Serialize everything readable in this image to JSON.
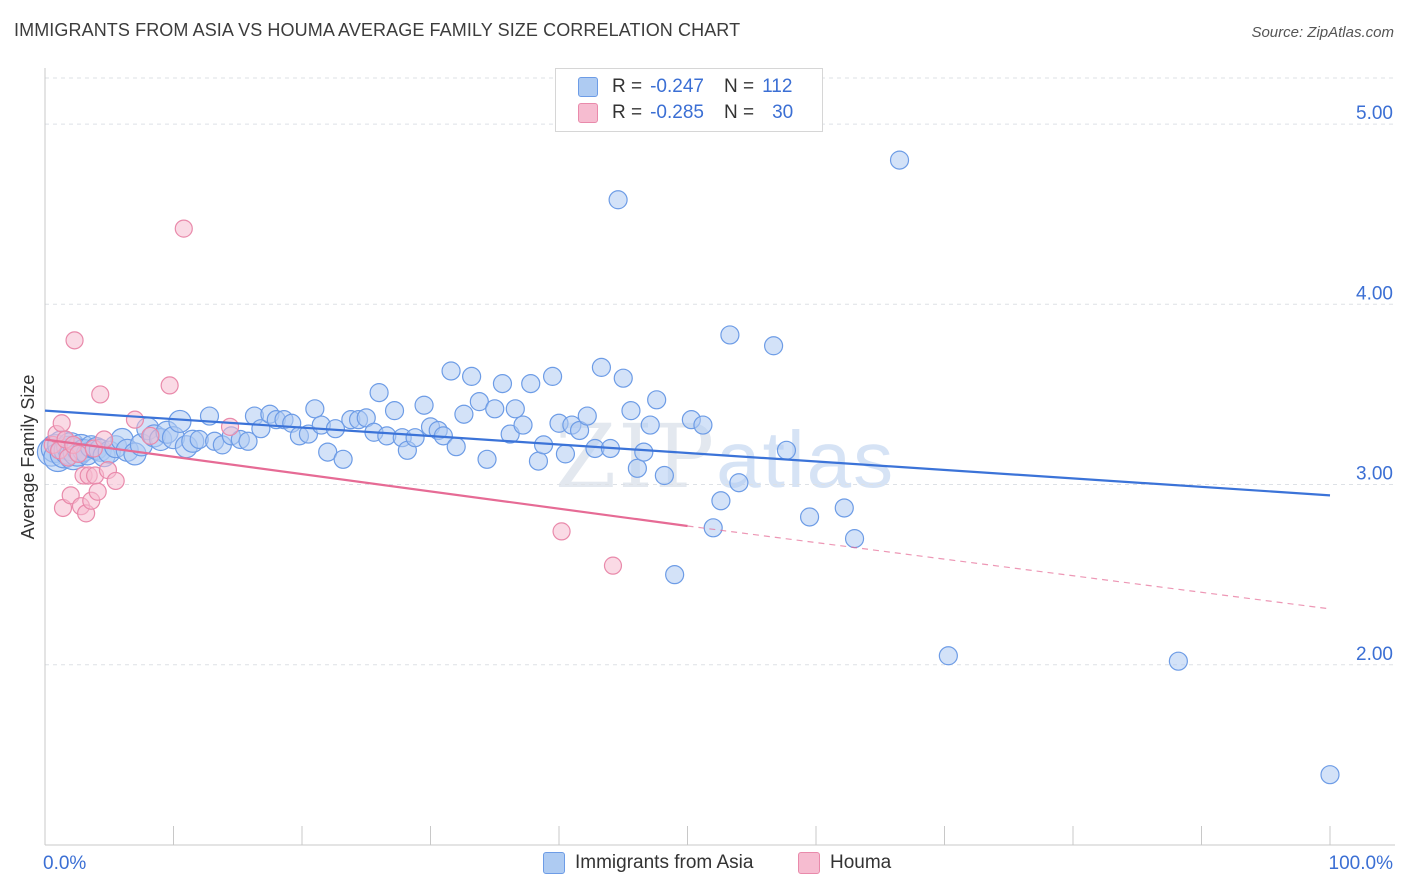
{
  "title": "IMMIGRANTS FROM ASIA VS HOUMA AVERAGE FAMILY SIZE CORRELATION CHART",
  "source": "Source: ZipAtlas.com",
  "watermark": {
    "zip": "ZIP",
    "atlas": "atlas"
  },
  "legend_top": [
    {
      "r_label": "R =",
      "r_value": "-0.247",
      "n_label": "N =",
      "n_value": "112"
    },
    {
      "r_label": "R =",
      "r_value": "-0.285",
      "n_label": "N =",
      "n_value": "30"
    }
  ],
  "legend_bottom": [
    "Immigrants from Asia",
    "Houma"
  ],
  "colors": {
    "blue": "#3b73d8",
    "blue_fill": "#aecbf2",
    "pink": "#e66b95",
    "pink_fill": "#f6bcd0",
    "axis_text": "#3b6fd4"
  },
  "chart_data": {
    "type": "scatter",
    "title": "IMMIGRANTS FROM ASIA VS HOUMA AVERAGE FAMILY SIZE CORRELATION CHART",
    "xlabel": "",
    "ylabel": "Average Family Size",
    "xlim": [
      0,
      100
    ],
    "ylim": [
      1.0,
      5.3
    ],
    "x_tick_labels": [
      "0.0%",
      "100.0%"
    ],
    "y_ticks": [
      2.0,
      3.0,
      4.0,
      5.0
    ],
    "y_tick_labels": [
      "2.00",
      "3.00",
      "4.00",
      "5.00"
    ],
    "series": [
      {
        "name": "Immigrants from Asia",
        "r": -0.247,
        "n": 112,
        "trend": {
          "x0": 0,
          "y0": 3.41,
          "x1": 100,
          "y1": 2.94
        },
        "points": [
          [
            0.5,
            3.18
          ],
          [
            0.8,
            3.2
          ],
          [
            1.0,
            3.15
          ],
          [
            1.3,
            3.22
          ],
          [
            1.5,
            3.17
          ],
          [
            1.8,
            3.19
          ],
          [
            2.0,
            3.21
          ],
          [
            2.2,
            3.16
          ],
          [
            2.5,
            3.18
          ],
          [
            2.8,
            3.2
          ],
          [
            3.0,
            3.19
          ],
          [
            3.3,
            3.17
          ],
          [
            3.6,
            3.21
          ],
          [
            4.0,
            3.2
          ],
          [
            4.3,
            3.19
          ],
          [
            4.6,
            3.16
          ],
          [
            5.0,
            3.18
          ],
          [
            5.5,
            3.21
          ],
          [
            6.0,
            3.25
          ],
          [
            6.4,
            3.19
          ],
          [
            7.0,
            3.17
          ],
          [
            7.5,
            3.22
          ],
          [
            8.0,
            3.31
          ],
          [
            8.5,
            3.27
          ],
          [
            9.0,
            3.25
          ],
          [
            9.5,
            3.29
          ],
          [
            10.0,
            3.26
          ],
          [
            10.5,
            3.35
          ],
          [
            11.0,
            3.21
          ],
          [
            11.5,
            3.24
          ],
          [
            12.0,
            3.25
          ],
          [
            12.8,
            3.38
          ],
          [
            13.2,
            3.24
          ],
          [
            13.8,
            3.22
          ],
          [
            14.5,
            3.27
          ],
          [
            15.2,
            3.25
          ],
          [
            15.8,
            3.24
          ],
          [
            16.3,
            3.38
          ],
          [
            16.8,
            3.31
          ],
          [
            17.5,
            3.39
          ],
          [
            18.0,
            3.36
          ],
          [
            18.6,
            3.36
          ],
          [
            19.2,
            3.34
          ],
          [
            19.8,
            3.27
          ],
          [
            20.5,
            3.28
          ],
          [
            21.0,
            3.42
          ],
          [
            21.5,
            3.33
          ],
          [
            22.0,
            3.18
          ],
          [
            22.6,
            3.31
          ],
          [
            23.2,
            3.14
          ],
          [
            23.8,
            3.36
          ],
          [
            24.4,
            3.36
          ],
          [
            25.0,
            3.37
          ],
          [
            25.6,
            3.29
          ],
          [
            26.0,
            3.51
          ],
          [
            26.6,
            3.27
          ],
          [
            27.2,
            3.41
          ],
          [
            27.8,
            3.26
          ],
          [
            28.2,
            3.19
          ],
          [
            28.8,
            3.26
          ],
          [
            29.5,
            3.44
          ],
          [
            30.0,
            3.32
          ],
          [
            30.6,
            3.3
          ],
          [
            31.0,
            3.27
          ],
          [
            31.6,
            3.63
          ],
          [
            32.0,
            3.21
          ],
          [
            32.6,
            3.39
          ],
          [
            33.2,
            3.6
          ],
          [
            33.8,
            3.46
          ],
          [
            34.4,
            3.14
          ],
          [
            35.0,
            3.42
          ],
          [
            35.6,
            3.56
          ],
          [
            36.2,
            3.28
          ],
          [
            36.6,
            3.42
          ],
          [
            37.2,
            3.33
          ],
          [
            37.8,
            3.56
          ],
          [
            38.4,
            3.13
          ],
          [
            38.8,
            3.22
          ],
          [
            39.5,
            3.6
          ],
          [
            40.0,
            3.34
          ],
          [
            40.5,
            3.17
          ],
          [
            41.0,
            3.33
          ],
          [
            41.6,
            3.3
          ],
          [
            42.2,
            3.38
          ],
          [
            42.8,
            3.2
          ],
          [
            43.3,
            3.65
          ],
          [
            44.0,
            3.2
          ],
          [
            44.6,
            4.58
          ],
          [
            45.0,
            3.59
          ],
          [
            45.6,
            3.41
          ],
          [
            46.1,
            3.09
          ],
          [
            46.6,
            3.18
          ],
          [
            47.1,
            3.33
          ],
          [
            47.6,
            3.47
          ],
          [
            48.2,
            3.05
          ],
          [
            49.0,
            2.5
          ],
          [
            50.3,
            3.36
          ],
          [
            51.2,
            3.33
          ],
          [
            52.0,
            2.76
          ],
          [
            52.6,
            2.91
          ],
          [
            53.3,
            3.83
          ],
          [
            54.0,
            3.01
          ],
          [
            56.7,
            3.77
          ],
          [
            57.7,
            3.19
          ],
          [
            59.5,
            2.82
          ],
          [
            62.2,
            2.87
          ],
          [
            63.0,
            2.7
          ],
          [
            66.5,
            4.8
          ],
          [
            70.3,
            2.05
          ],
          [
            88.2,
            2.02
          ],
          [
            100.0,
            1.39
          ]
        ]
      },
      {
        "name": "Houma",
        "r": -0.285,
        "n": 30,
        "trend": {
          "x0": 0,
          "y0": 3.25,
          "x1": 50,
          "y1": 2.77
        },
        "trend_dashed": {
          "x0": 50,
          "y0": 2.77,
          "x1": 100,
          "y1": 2.31
        },
        "points": [
          [
            0.6,
            3.22
          ],
          [
            0.9,
            3.28
          ],
          [
            1.1,
            3.19
          ],
          [
            1.3,
            3.34
          ],
          [
            1.4,
            2.87
          ],
          [
            1.6,
            3.25
          ],
          [
            1.8,
            3.15
          ],
          [
            2.0,
            2.94
          ],
          [
            2.2,
            3.22
          ],
          [
            2.3,
            3.8
          ],
          [
            2.6,
            3.17
          ],
          [
            2.8,
            2.88
          ],
          [
            3.0,
            3.05
          ],
          [
            3.2,
            2.84
          ],
          [
            3.4,
            3.05
          ],
          [
            3.6,
            2.91
          ],
          [
            3.8,
            3.2
          ],
          [
            3.9,
            3.05
          ],
          [
            4.1,
            2.96
          ],
          [
            4.3,
            3.5
          ],
          [
            4.6,
            3.25
          ],
          [
            4.9,
            3.08
          ],
          [
            5.5,
            3.02
          ],
          [
            7.0,
            3.36
          ],
          [
            8.2,
            3.27
          ],
          [
            9.7,
            3.55
          ],
          [
            10.8,
            4.42
          ],
          [
            14.4,
            3.32
          ],
          [
            40.2,
            2.74
          ],
          [
            44.2,
            2.55
          ]
        ]
      }
    ]
  }
}
